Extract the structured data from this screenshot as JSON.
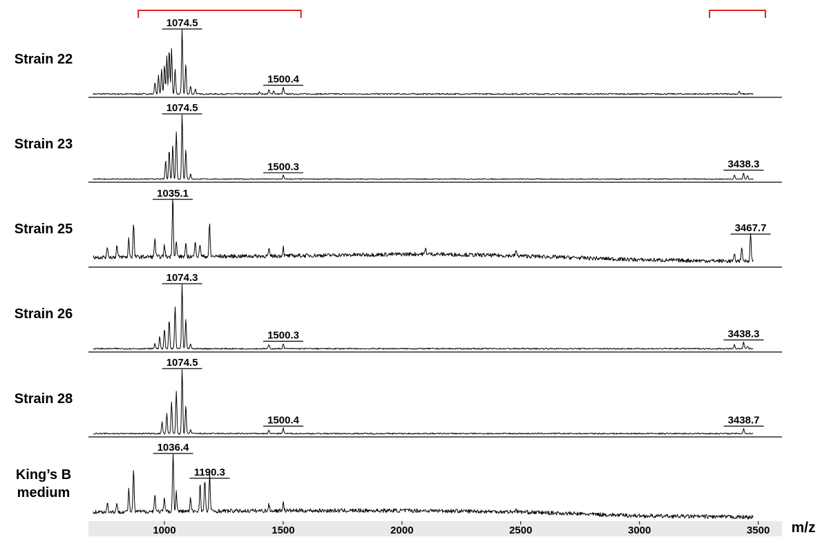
{
  "chart_data": {
    "type": "line",
    "xlabel": "m/z",
    "xlim": [
      680,
      3600
    ],
    "xticks": [
      1000,
      1500,
      2000,
      2500,
      3000,
      3500
    ],
    "tick_labels": [
      "1000",
      "1500",
      "2000",
      "2500",
      "3000",
      "3500"
    ],
    "colors": {
      "trace": "#000000",
      "bracket": "#e0201b",
      "axis_band": "#e9e9e9"
    },
    "brackets": [
      {
        "from": 890,
        "to": 1575
      },
      {
        "from": 3295,
        "to": 3530
      }
    ],
    "series": [
      {
        "name": "Strain 22",
        "label": "Strain 22",
        "noise": 0.02,
        "baseline": [
          [
            700,
            0.02
          ],
          [
            3480,
            0.02
          ]
        ],
        "peaks": [
          [
            960,
            0.18
          ],
          [
            975,
            0.28
          ],
          [
            988,
            0.38
          ],
          [
            1000,
            0.45
          ],
          [
            1010,
            0.58
          ],
          [
            1020,
            0.68
          ],
          [
            1030,
            0.7
          ],
          [
            1045,
            0.38
          ],
          [
            1074.5,
            1.0
          ],
          [
            1090,
            0.45
          ],
          [
            1110,
            0.12
          ],
          [
            1130,
            0.08
          ],
          [
            1400,
            0.04
          ],
          [
            1440,
            0.06
          ],
          [
            1460,
            0.05
          ],
          [
            1500.4,
            0.1
          ],
          [
            3420,
            0.04
          ]
        ],
        "annotations": [
          {
            "text": "1074.5",
            "x": 1074.5
          },
          {
            "text": "1500.4",
            "x": 1500.4
          }
        ]
      },
      {
        "name": "Strain 23",
        "label": "Strain 23",
        "noise": 0.015,
        "baseline": [
          [
            700,
            0.02
          ],
          [
            3480,
            0.02
          ]
        ],
        "peaks": [
          [
            1005,
            0.28
          ],
          [
            1020,
            0.45
          ],
          [
            1035,
            0.52
          ],
          [
            1050,
            0.72
          ],
          [
            1074.5,
            1.0
          ],
          [
            1090,
            0.45
          ],
          [
            1110,
            0.08
          ],
          [
            1500.3,
            0.06
          ],
          [
            3400,
            0.06
          ],
          [
            3438.3,
            0.1
          ],
          [
            3455,
            0.05
          ]
        ],
        "annotations": [
          {
            "text": "1074.5",
            "x": 1074.5
          },
          {
            "text": "1500.3",
            "x": 1500.3
          },
          {
            "text": "3438.3",
            "x": 3438.3
          }
        ]
      },
      {
        "name": "Strain 25",
        "label": "Strain 25",
        "noise": 0.06,
        "baseline": [
          [
            700,
            0.1
          ],
          [
            1500,
            0.12
          ],
          [
            2100,
            0.15
          ],
          [
            2500,
            0.12
          ],
          [
            3000,
            0.06
          ],
          [
            3400,
            0.04
          ],
          [
            3480,
            0.05
          ]
        ],
        "peaks": [
          [
            760,
            0.16
          ],
          [
            800,
            0.18
          ],
          [
            850,
            0.28
          ],
          [
            870,
            0.52
          ],
          [
            960,
            0.3
          ],
          [
            1000,
            0.18
          ],
          [
            1035.1,
            0.95
          ],
          [
            1050,
            0.22
          ],
          [
            1090,
            0.18
          ],
          [
            1130,
            0.26
          ],
          [
            1150,
            0.2
          ],
          [
            1190,
            0.5
          ],
          [
            1440,
            0.1
          ],
          [
            1500,
            0.14
          ],
          [
            2100,
            0.08
          ],
          [
            2480,
            0.08
          ],
          [
            3400,
            0.1
          ],
          [
            3430,
            0.22
          ],
          [
            3467.7,
            0.42
          ]
        ],
        "annotations": [
          {
            "text": "1035.1",
            "x": 1035.1
          },
          {
            "text": "3467.7",
            "x": 3467.7
          }
        ]
      },
      {
        "name": "Strain 26",
        "label": "Strain 26",
        "noise": 0.02,
        "baseline": [
          [
            700,
            0.02
          ],
          [
            3480,
            0.02
          ]
        ],
        "peaks": [
          [
            960,
            0.08
          ],
          [
            980,
            0.18
          ],
          [
            1000,
            0.3
          ],
          [
            1020,
            0.45
          ],
          [
            1045,
            0.65
          ],
          [
            1074.3,
            1.0
          ],
          [
            1090,
            0.45
          ],
          [
            1110,
            0.08
          ],
          [
            1440,
            0.06
          ],
          [
            1500.3,
            0.08
          ],
          [
            3400,
            0.06
          ],
          [
            3438.3,
            0.1
          ],
          [
            3455,
            0.04
          ]
        ],
        "annotations": [
          {
            "text": "1074.3",
            "x": 1074.3
          },
          {
            "text": "1500.3",
            "x": 1500.3
          },
          {
            "text": "3438.3",
            "x": 3438.3
          }
        ]
      },
      {
        "name": "Strain 28",
        "label": "Strain 28",
        "noise": 0.02,
        "baseline": [
          [
            700,
            0.02
          ],
          [
            3480,
            0.02
          ]
        ],
        "peaks": [
          [
            990,
            0.18
          ],
          [
            1010,
            0.3
          ],
          [
            1030,
            0.48
          ],
          [
            1050,
            0.65
          ],
          [
            1074.5,
            1.0
          ],
          [
            1090,
            0.42
          ],
          [
            1110,
            0.06
          ],
          [
            1440,
            0.05
          ],
          [
            1500.4,
            0.08
          ],
          [
            3438.7,
            0.08
          ]
        ],
        "annotations": [
          {
            "text": "1074.5",
            "x": 1074.5
          },
          {
            "text": "1500.4",
            "x": 1500.4
          },
          {
            "text": "3438.7",
            "x": 3438.7
          }
        ]
      },
      {
        "name": "King’s B medium",
        "label_lines": [
          "King’s B",
          "medium"
        ],
        "noise": 0.06,
        "baseline": [
          [
            700,
            0.1
          ],
          [
            1500,
            0.12
          ],
          [
            2100,
            0.12
          ],
          [
            2500,
            0.1
          ],
          [
            3000,
            0.04
          ],
          [
            3480,
            0.02
          ]
        ],
        "peaks": [
          [
            760,
            0.14
          ],
          [
            800,
            0.12
          ],
          [
            850,
            0.34
          ],
          [
            870,
            0.62
          ],
          [
            960,
            0.28
          ],
          [
            1000,
            0.2
          ],
          [
            1036.4,
            1.0
          ],
          [
            1050,
            0.3
          ],
          [
            1110,
            0.2
          ],
          [
            1150,
            0.42
          ],
          [
            1170,
            0.48
          ],
          [
            1190.3,
            0.58
          ],
          [
            1440,
            0.1
          ],
          [
            1500,
            0.14
          ],
          [
            2480,
            0.06
          ]
        ],
        "annotations": [
          {
            "text": "1036.4",
            "x": 1036.4
          },
          {
            "text": "1190.3",
            "x": 1190.3
          }
        ]
      }
    ]
  }
}
